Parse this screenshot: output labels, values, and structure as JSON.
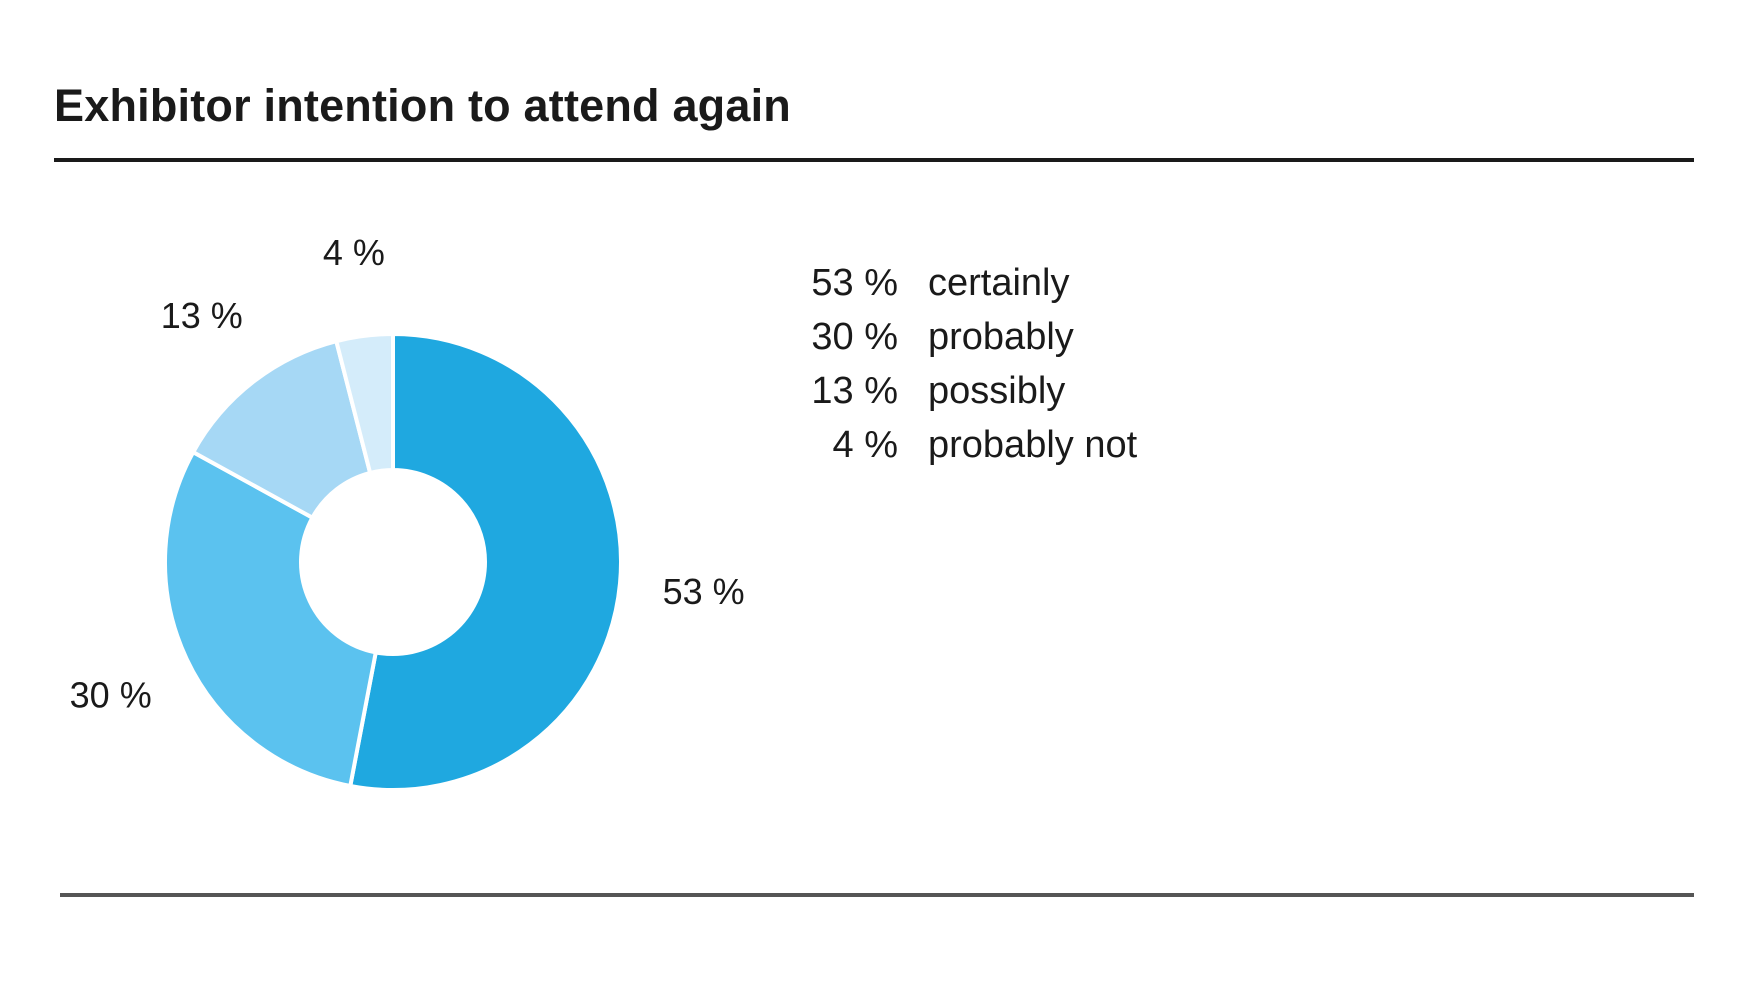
{
  "title": "Exhibitor intention to attend again",
  "chart_data": {
    "type": "pie",
    "variant": "donut",
    "title": "Exhibitor intention to attend again",
    "unit": "%",
    "slices": [
      {
        "category": "certainly",
        "value": 53,
        "label": "53 %",
        "legend_value": "53 %",
        "color": "#1fa8e0"
      },
      {
        "category": "probably",
        "value": 30,
        "label": "30 %",
        "legend_value": "30 %",
        "color": "#5bc2ef"
      },
      {
        "category": "possibly",
        "value": 13,
        "label": "13 %",
        "legend_value": "13 %",
        "color": "#a6d8f5"
      },
      {
        "category": "probably not",
        "value": 4,
        "label": "4 %",
        "legend_value": "4 %",
        "color": "#d4ecfa"
      }
    ],
    "legend_position": "right",
    "start_angle": "12 o'clock",
    "direction": "clockwise"
  },
  "legend": {
    "items": [
      {
        "value": "53 %",
        "label": "certainly"
      },
      {
        "value": "30 %",
        "label": "probably"
      },
      {
        "value": "13 %",
        "label": "possibly"
      },
      {
        "value": "4 %",
        "label": "probably not"
      }
    ]
  }
}
